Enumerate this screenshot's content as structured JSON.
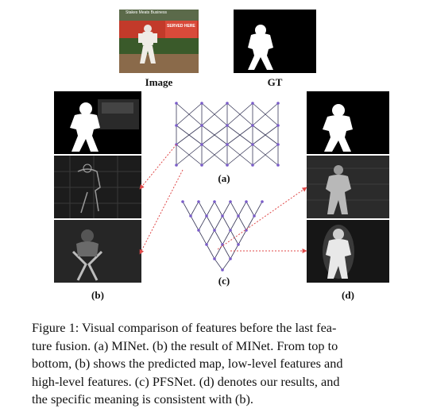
{
  "top_row": {
    "image_label": "Image",
    "gt_label": "GT",
    "scene_banner_text": "Stakes Meats Business",
    "scene_sign_text": "SERVED HERE"
  },
  "panel_labels": {
    "a": "(a)",
    "b": "(b)",
    "c": "(c)",
    "d": "(d)"
  },
  "caption": {
    "lines": [
      "Figure 1: Visual comparison of features before the last fea-",
      "ture fusion. (a) MINet. (b) the result of MINet. From top to",
      "bottom, (b) shows the predicted map, low-level features and",
      "high-level features. (c) PFSNet. (d) denotes our results, and",
      "the specific meaning is consistent with (b)."
    ]
  },
  "colors": {
    "node": "#7a5cc9",
    "edge": "#3a3a5a",
    "arrow": "#e04a4a",
    "feature_bg": "#1c1c1c"
  }
}
